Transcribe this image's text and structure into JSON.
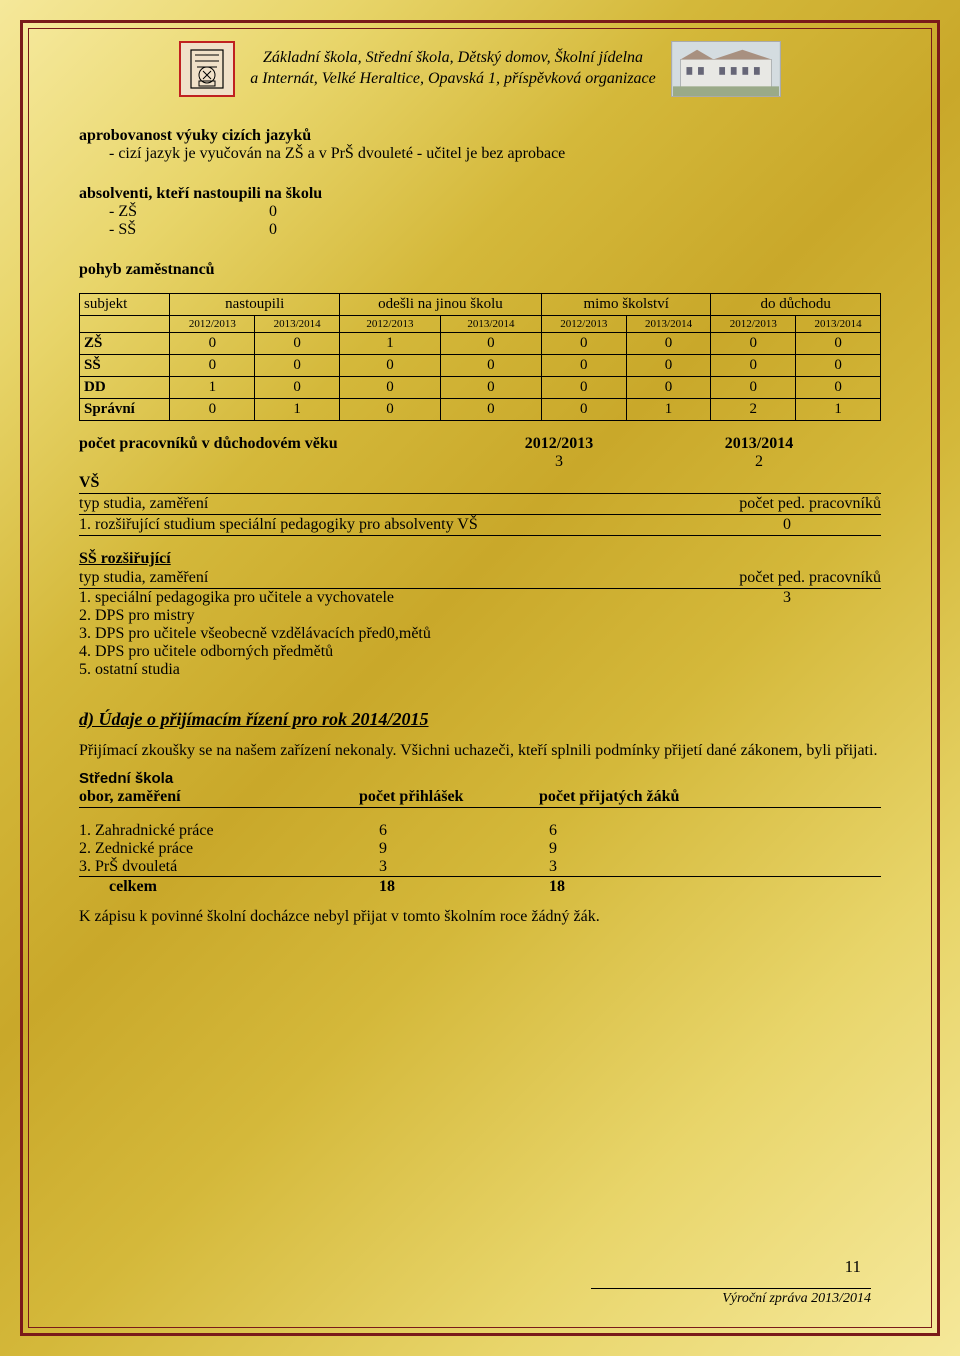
{
  "header": {
    "line1": "Základní škola, Střední škola, Dětský domov, Školní jídelna",
    "line2": "a Internát, Velké Heraltice, Opavská 1, příspěvková organizace"
  },
  "s1": {
    "title": "aprobovanost výuky cizích jazyků",
    "item": "-   cizí jazyk je vyučován  na ZŠ a v PrŠ dvouleté  -  učitel je bez aprobace"
  },
  "s2": {
    "title": "absolventi, kteří nastoupili na školu",
    "i1l": "-   ZŠ",
    "i1v": "0",
    "i2l": "-   SŠ",
    "i2v": "0"
  },
  "s3": {
    "title": "pohyb zaměstnanců"
  },
  "table": {
    "h_subjekt": "subjekt",
    "h_nastoupili": "nastoupili",
    "h_odesli": "odešli na jinou školu",
    "h_mimo": "mimo školství",
    "h_duchod": "do důchodu",
    "y1": "2012/2013",
    "y2": "2013/2014",
    "rows": [
      {
        "l": "ZŠ",
        "v": [
          "0",
          "0",
          "1",
          "0",
          "0",
          "0",
          "0",
          "0"
        ]
      },
      {
        "l": "SŠ",
        "v": [
          "0",
          "0",
          "0",
          "0",
          "0",
          "0",
          "0",
          "0"
        ]
      },
      {
        "l": "DD",
        "v": [
          "1",
          "0",
          "0",
          "0",
          "0",
          "0",
          "0",
          "0"
        ]
      },
      {
        "l": "Správní",
        "v": [
          "0",
          "1",
          "0",
          "0",
          "0",
          "1",
          "2",
          "1"
        ]
      }
    ]
  },
  "retire": {
    "label": "počet pracovníků v důchodovém věku",
    "y1": "2012/2013",
    "y2": "2013/2014",
    "v1": "3",
    "v2": "2"
  },
  "vs": {
    "title": "VŠ",
    "hdr_l": "typ studia, zaměření",
    "hdr_r": "počet ped. pracovníků",
    "i1": "1. rozšiřující studium speciální pedagogiky pro absolventy VŠ",
    "i1v": "0"
  },
  "ssroz": {
    "title": "SŠ rozšiřující",
    "hdr_l": "typ studia, zaměření",
    "hdr_r": "počet ped. pracovníků",
    "i1": "1. speciální pedagogika pro učitele a vychovatele",
    "i1v": "3",
    "i2": "2. DPS pro mistry",
    "i3": "3. DPS pro učitele všeobecně vzdělávacích před0,mětů",
    "i4": "4. DPS pro učitele odborných  předmětů",
    "i5": "5. ostatní studia"
  },
  "d": {
    "title": "d)  Údaje o přijímacím řízení pro rok 2014/2015",
    "p1": "Přijímací zkoušky se na našem zařízení nekonaly. Všichni uchazeči, kteří splnili podmínky přijetí dané zákonem, byli přijati.",
    "stredni": "Střední škola",
    "col1": "obor, zaměření",
    "col2": "počet přihlášek",
    "col3": "počet přijatých žáků",
    "rows": [
      {
        "l": "1.  Zahradnické práce",
        "a": "6",
        "b": "6"
      },
      {
        "l": "2.  Zednické práce",
        "a": "9",
        "b": "9"
      },
      {
        "l": "3.  PrŠ dvouletá",
        "a": "3",
        "b": "3"
      }
    ],
    "total_l": "celkem",
    "total_a": "18",
    "total_b": "18",
    "note": "K zápisu k povinné školní docházce nebyl přijat v tomto školním roce žádný žák."
  },
  "page_num": "11",
  "footer": "Výroční zpráva 2013/2014"
}
